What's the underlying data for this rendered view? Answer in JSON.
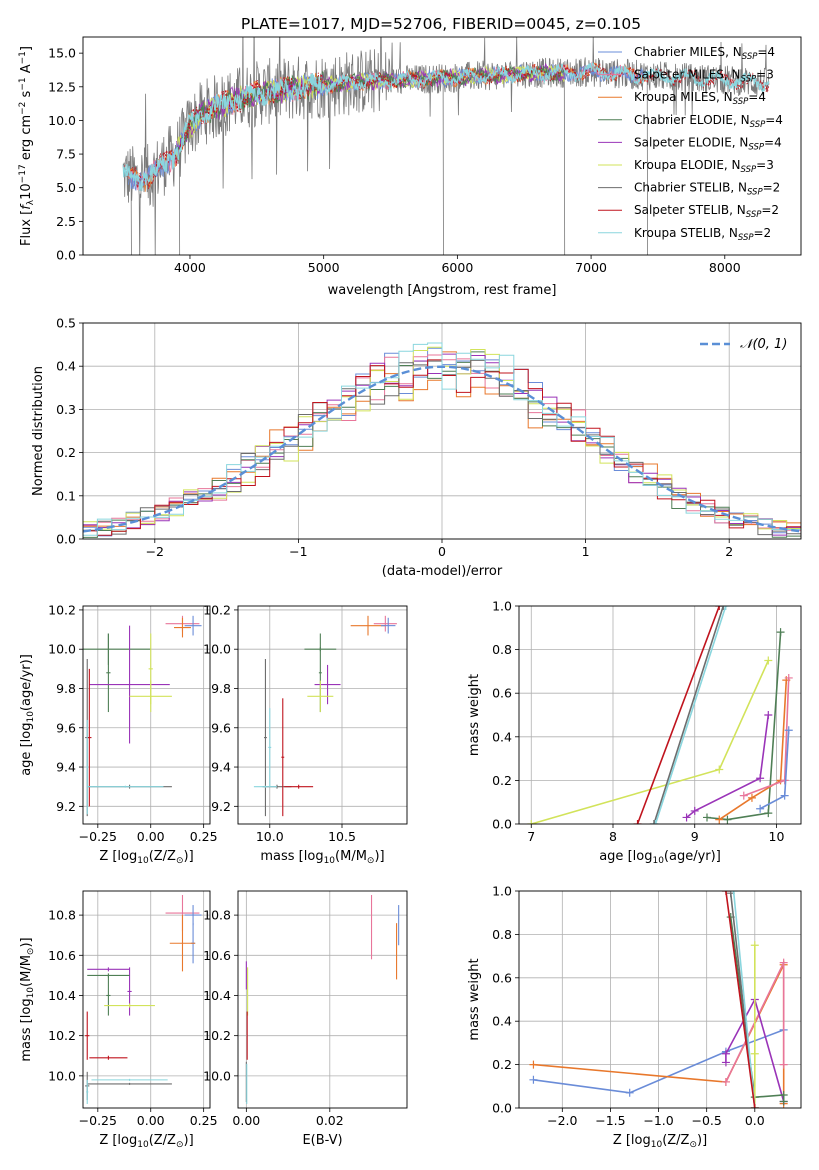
{
  "figure_title": "PLATE=1017, MJD=52706, FIBERID=0045, z=0.105",
  "colors": {
    "Chabrier MILES": "#6a8cd8",
    "Salpeter MILES": "#e8769a",
    "Kroupa MILES": "#e8782c",
    "Chabrier ELODIE": "#4f7f55",
    "Salpeter ELODIE": "#9a34b8",
    "Kroupa ELODIE": "#d2e35a",
    "Chabrier STELIB": "#6d6d6d",
    "Salpeter STELIB": "#c0141e",
    "Kroupa STELIB": "#8ad6de",
    "gaussian": "#5a8fd6"
  },
  "chart_data": [
    {
      "id": "spectrum",
      "type": "line",
      "xlabel": "wavelength [Angstrom, rest frame]",
      "ylabel_parts": [
        "Flux [",
        "f",
        "λ",
        "10",
        "−17",
        " erg cm",
        "−2",
        " s",
        "−1",
        " A",
        "−1",
        "]"
      ],
      "xlim": [
        3200,
        8570
      ],
      "ylim": [
        0,
        16.2
      ],
      "xticks": [
        4000,
        5000,
        6000,
        7000,
        8000
      ],
      "yticks": [
        0.0,
        2.5,
        5.0,
        7.5,
        10.0,
        12.5,
        15.0
      ],
      "grid": false,
      "legend_position": "upper right",
      "legend": [
        {
          "base": "Chabrier MILES, N",
          "sub": "SSP",
          "tail": "=4"
        },
        {
          "base": "Salpeter MILES, N",
          "sub": "SSP",
          "tail": "=3"
        },
        {
          "base": "Kroupa MILES, N",
          "sub": "SSP",
          "tail": "=4"
        },
        {
          "base": "Chabrier ELODIE, N",
          "sub": "SSP",
          "tail": "=4"
        },
        {
          "base": "Salpeter ELODIE, N",
          "sub": "SSP",
          "tail": "=4"
        },
        {
          "base": "Kroupa ELODIE, N",
          "sub": "SSP",
          "tail": "=3"
        },
        {
          "base": "Chabrier STELIB, N",
          "sub": "SSP",
          "tail": "=2"
        },
        {
          "base": "Salpeter STELIB, N",
          "sub": "SSP",
          "tail": "=2"
        },
        {
          "base": "Kroupa STELIB, N",
          "sub": "SSP",
          "tail": "=2"
        }
      ],
      "continuum": {
        "x": [
          3500,
          3600,
          3700,
          3800,
          3900,
          4000,
          4100,
          4200,
          4300,
          4500,
          4700,
          5000,
          5300,
          5600,
          6000,
          6500,
          7000,
          7500,
          8000,
          8300
        ],
        "y": [
          6.0,
          5.6,
          5.8,
          6.8,
          7.6,
          9.6,
          10.6,
          11.0,
          11.4,
          12.0,
          12.3,
          12.6,
          12.9,
          13.0,
          13.2,
          13.5,
          13.6,
          13.3,
          13.0,
          12.8
        ]
      },
      "data_noise_amplitude": 2.5,
      "data_spikes_x": [
        3560,
        3920,
        5893,
        6800,
        7420
      ]
    },
    {
      "id": "residuals",
      "type": "histogram",
      "xlabel": "(data-model)/error",
      "ylabel": "Normed distribution",
      "xlim": [
        -2.5,
        2.5
      ],
      "ylim": [
        0,
        0.5
      ],
      "xticks": [
        -2,
        -1,
        0,
        1,
        2
      ],
      "yticks": [
        0.0,
        0.1,
        0.2,
        0.3,
        0.4,
        0.5
      ],
      "grid": true,
      "legend_position": "upper right",
      "legend_label": "𝒩(0, 1)",
      "bin_width": 0.1,
      "gaussian_sigma": 1.0
    },
    {
      "id": "age_vs_Z",
      "type": "errorbar",
      "xlabel_parts": [
        "Z [log",
        "10",
        "(Z/Z",
        "⊙",
        ")]"
      ],
      "ylabel_parts": [
        "age  [log",
        "10",
        "(age/yr)]"
      ],
      "xlim": [
        -0.32,
        0.28
      ],
      "ylim": [
        9.11,
        10.22
      ],
      "xticks": [
        -0.25,
        0.0,
        0.25
      ],
      "yticks": [
        9.2,
        9.4,
        9.6,
        9.8,
        10.0,
        10.2
      ],
      "grid": true,
      "points": [
        {
          "model": "Salpeter MILES",
          "x": 0.15,
          "y": 10.13,
          "xerr": 0.08,
          "yerr": 0.04
        },
        {
          "model": "Kroupa MILES",
          "x": 0.15,
          "y": 10.11,
          "xerr": 0.04,
          "yerr": 0.05
        },
        {
          "model": "Chabrier MILES",
          "x": 0.2,
          "y": 10.12,
          "xerr": 0.04,
          "yerr": 0.05
        },
        {
          "model": "Chabrier ELODIE",
          "x": -0.2,
          "y": 10.0,
          "xerr": 0.2,
          "yerr": 0.08
        },
        {
          "model": "Chabrier ELODIE",
          "x": -0.2,
          "y": 9.88,
          "xerr": 0.01,
          "yerr": 0.2
        },
        {
          "model": "Salpeter ELODIE",
          "x": -0.1,
          "y": 9.82,
          "xerr": 0.19,
          "yerr": 0.3
        },
        {
          "model": "Kroupa ELODIE",
          "x": 0.0,
          "y": 9.76,
          "xerr": 0.1,
          "yerr": 0.08
        },
        {
          "model": "Kroupa ELODIE",
          "x": 0.0,
          "y": 9.9,
          "xerr": 0.01,
          "yerr": 0.18
        },
        {
          "model": "Chabrier STELIB",
          "x": -0.1,
          "y": 9.3,
          "xerr": 0.2,
          "yerr": 0.01
        },
        {
          "model": "Chabrier STELIB",
          "x": -0.3,
          "y": 9.55,
          "xerr": 0.01,
          "yerr": 0.4
        },
        {
          "model": "Salpeter STELIB",
          "x": -0.29,
          "y": 9.55,
          "xerr": 0.01,
          "yerr": 0.35
        },
        {
          "model": "Kroupa STELIB",
          "x": -0.3,
          "y": 9.4,
          "xerr": 0.005,
          "yerr": 0.24
        },
        {
          "model": "Kroupa STELIB",
          "x": -0.12,
          "y": 9.3,
          "xerr": 0.18,
          "yerr": 0.005
        }
      ]
    },
    {
      "id": "age_vs_mass",
      "type": "errorbar",
      "xlabel_parts": [
        "mass [log",
        "10",
        "(M/M",
        "⊙",
        ")]"
      ],
      "ylabel_parts": [],
      "xlim": [
        9.78,
        10.95
      ],
      "ylim": [
        9.11,
        10.22
      ],
      "xticks": [
        10.0,
        10.5
      ],
      "yticks": [
        9.2,
        9.4,
        9.6,
        9.8,
        10.0,
        10.2
      ],
      "grid": true,
      "points": [
        {
          "model": "Salpeter MILES",
          "x": 10.8,
          "y": 10.13,
          "xerr": 0.08,
          "yerr": 0.04
        },
        {
          "model": "Kroupa MILES",
          "x": 10.68,
          "y": 10.12,
          "xerr": 0.12,
          "yerr": 0.05
        },
        {
          "model": "Chabrier MILES",
          "x": 10.82,
          "y": 10.12,
          "xerr": 0.05,
          "yerr": 0.04
        },
        {
          "model": "Chabrier ELODIE",
          "x": 10.35,
          "y": 10.0,
          "xerr": 0.11,
          "yerr": 0.01
        },
        {
          "model": "Chabrier ELODIE",
          "x": 10.35,
          "y": 9.88,
          "xerr": 0.01,
          "yerr": 0.2
        },
        {
          "model": "Salpeter ELODIE",
          "x": 10.4,
          "y": 9.82,
          "xerr": 0.09,
          "yerr": 0.1
        },
        {
          "model": "Kroupa ELODIE",
          "x": 10.35,
          "y": 9.76,
          "xerr": 0.09,
          "yerr": 0.08
        },
        {
          "model": "Chabrier STELIB",
          "x": 9.97,
          "y": 9.55,
          "xerr": 0.01,
          "yerr": 0.4
        },
        {
          "model": "Chabrier STELIB",
          "x": 10.05,
          "y": 9.3,
          "xerr": 0.1,
          "yerr": 0.01
        },
        {
          "model": "Salpeter STELIB",
          "x": 10.09,
          "y": 9.45,
          "xerr": 0.01,
          "yerr": 0.3
        },
        {
          "model": "Salpeter STELIB",
          "x": 10.2,
          "y": 9.3,
          "xerr": 0.1,
          "yerr": 0.01
        },
        {
          "model": "Kroupa STELIB",
          "x": 9.97,
          "y": 9.3,
          "xerr": 0.08,
          "yerr": 0.005
        },
        {
          "model": "Kroupa STELIB",
          "x": 10.0,
          "y": 9.5,
          "xerr": 0.01,
          "yerr": 0.2
        }
      ]
    },
    {
      "id": "weight_vs_age",
      "type": "line",
      "xlabel_parts": [
        "age  [log",
        "10",
        "(age/yr)]"
      ],
      "ylabel": "mass weight",
      "xlim": [
        6.85,
        10.3
      ],
      "ylim": [
        0,
        1.0
      ],
      "xticks": [
        7,
        8,
        9,
        10
      ],
      "yticks": [
        0.0,
        0.2,
        0.4,
        0.6,
        0.8,
        1.0
      ],
      "grid": true,
      "series": [
        {
          "model": "Kroupa ELODIE",
          "x": [
            7.0,
            9.3,
            9.9
          ],
          "y": [
            0.0,
            0.25,
            0.75
          ]
        },
        {
          "model": "Salpeter STELIB",
          "x": [
            8.3,
            9.3
          ],
          "y": [
            0.0,
            1.0
          ]
        },
        {
          "model": "Chabrier STELIB",
          "x": [
            8.5,
            9.35
          ],
          "y": [
            0.0,
            1.0
          ]
        },
        {
          "model": "Kroupa STELIB",
          "x": [
            8.52,
            9.38
          ],
          "y": [
            0.0,
            1.0
          ]
        },
        {
          "model": "Salpeter ELODIE",
          "x": [
            8.9,
            9.0,
            9.8,
            9.9
          ],
          "y": [
            0.03,
            0.06,
            0.21,
            0.5
          ]
        },
        {
          "model": "Chabrier ELODIE",
          "x": [
            9.15,
            9.4,
            9.9,
            10.05
          ],
          "y": [
            0.03,
            0.02,
            0.05,
            0.88
          ]
        },
        {
          "model": "Kroupa MILES",
          "x": [
            9.3,
            9.7,
            10.05,
            10.12
          ],
          "y": [
            0.02,
            0.12,
            0.2,
            0.66
          ]
        },
        {
          "model": "Salpeter MILES",
          "x": [
            9.6,
            10.1,
            10.15
          ],
          "y": [
            0.13,
            0.2,
            0.67
          ]
        },
        {
          "model": "Chabrier MILES",
          "x": [
            9.8,
            10.1,
            10.15
          ],
          "y": [
            0.07,
            0.13,
            0.43
          ]
        }
      ]
    },
    {
      "id": "mass_vs_Z",
      "type": "errorbar",
      "xlabel_parts": [
        "Z [log",
        "10",
        "(Z/Z",
        "⊙",
        ")]"
      ],
      "ylabel_parts": [
        "mass [log",
        "10",
        "(M/M",
        "⊙",
        ")]"
      ],
      "xlim": [
        -0.32,
        0.28
      ],
      "ylim": [
        9.84,
        10.92
      ],
      "xticks": [
        -0.25,
        0.0,
        0.25
      ],
      "yticks": [
        10.0,
        10.2,
        10.4,
        10.6,
        10.8
      ],
      "grid": true,
      "points": [
        {
          "model": "Salpeter MILES",
          "x": 0.15,
          "y": 10.81,
          "xerr": 0.08,
          "yerr": 0.09
        },
        {
          "model": "Chabrier MILES",
          "x": 0.2,
          "y": 10.8,
          "xerr": 0.04,
          "yerr": 0.05
        },
        {
          "model": "Chabrier MILES",
          "x": 0.2,
          "y": 10.66,
          "xerr": 0.01,
          "yerr": 0.1
        },
        {
          "model": "Kroupa MILES",
          "x": 0.15,
          "y": 10.66,
          "xerr": 0.06,
          "yerr": 0.14
        },
        {
          "model": "Salpeter ELODIE",
          "x": -0.2,
          "y": 10.53,
          "xerr": 0.1,
          "yerr": 0.01
        },
        {
          "model": "Salpeter ELODIE",
          "x": -0.1,
          "y": 10.42,
          "xerr": 0.01,
          "yerr": 0.12
        },
        {
          "model": "Chabrier ELODIE",
          "x": -0.2,
          "y": 10.5,
          "xerr": 0.1,
          "yerr": 0.01
        },
        {
          "model": "Chabrier ELODIE",
          "x": -0.2,
          "y": 10.4,
          "xerr": 0.01,
          "yerr": 0.1
        },
        {
          "model": "Kroupa ELODIE",
          "x": -0.1,
          "y": 10.35,
          "xerr": 0.12,
          "yerr": 0.01
        },
        {
          "model": "Salpeter STELIB",
          "x": -0.3,
          "y": 10.2,
          "xerr": 0.01,
          "yerr": 0.12
        },
        {
          "model": "Salpeter STELIB",
          "x": -0.2,
          "y": 10.09,
          "xerr": 0.09,
          "yerr": 0.01
        },
        {
          "model": "Kroupa STELIB",
          "x": -0.1,
          "y": 9.98,
          "xerr": 0.18,
          "yerr": 0.005
        },
        {
          "model": "Chabrier STELIB",
          "x": -0.1,
          "y": 9.96,
          "xerr": 0.2,
          "yerr": 0.005
        },
        {
          "model": "Chabrier STELIB",
          "x": -0.3,
          "y": 9.95,
          "xerr": 0.01,
          "yerr": 0.07
        },
        {
          "model": "Kroupa STELIB",
          "x": -0.3,
          "y": 9.92,
          "xerr": 0.005,
          "yerr": 0.06
        }
      ]
    },
    {
      "id": "mass_vs_EBV",
      "type": "errorbar",
      "xlabel": "E(B-V)",
      "ylabel_parts": [],
      "xlim": [
        -0.002,
        0.0385
      ],
      "ylim": [
        9.84,
        10.92
      ],
      "xticks": [
        0.0,
        0.02
      ],
      "xtick_labels": [
        "0.00",
        "0.02"
      ],
      "yticks": [
        10.0,
        10.2,
        10.4,
        10.6,
        10.8
      ],
      "grid": true,
      "points": [
        {
          "model": "Salpeter MILES",
          "x": 0.03,
          "y": 10.74,
          "xerr": 0.0,
          "yerr": 0.16
        },
        {
          "model": "Chabrier MILES",
          "x": 0.0365,
          "y": 10.75,
          "xerr": 0.0,
          "yerr": 0.1
        },
        {
          "model": "Kroupa MILES",
          "x": 0.036,
          "y": 10.62,
          "xerr": 0.0,
          "yerr": 0.14
        },
        {
          "model": "Salpeter ELODIE",
          "x": 0.0,
          "y": 10.5,
          "xerr": 0.0,
          "yerr": 0.07
        },
        {
          "model": "Kroupa ELODIE",
          "x": 0.0003,
          "y": 10.42,
          "xerr": 0.0,
          "yerr": 0.12
        },
        {
          "model": "Salpeter STELIB",
          "x": 0.0002,
          "y": 10.2,
          "xerr": 0.0,
          "yerr": 0.12
        },
        {
          "model": "Chabrier STELIB",
          "x": 0.0,
          "y": 9.97,
          "xerr": 0.0,
          "yerr": 0.1
        },
        {
          "model": "Kroupa STELIB",
          "x": 0.0001,
          "y": 9.96,
          "xerr": 0.0,
          "yerr": 0.1
        }
      ]
    },
    {
      "id": "weight_vs_Z",
      "type": "line",
      "xlabel_parts": [
        "Z [log",
        "10",
        "(Z/Z",
        "⊙",
        ")]"
      ],
      "ylabel": "mass weight",
      "xlim": [
        -2.45,
        0.48
      ],
      "ylim": [
        0,
        1.0
      ],
      "xticks": [
        -2.0,
        -1.5,
        -1.0,
        -0.5,
        0.0
      ],
      "yticks": [
        0.0,
        0.2,
        0.4,
        0.6,
        0.8,
        1.0
      ],
      "grid": true,
      "series": [
        {
          "model": "Chabrier MILES",
          "x": [
            -2.3,
            -1.3,
            -0.3,
            0.3
          ],
          "y": [
            0.13,
            0.07,
            0.26,
            0.36
          ]
        },
        {
          "model": "Kroupa MILES",
          "x": [
            -2.3,
            -0.3,
            0.3,
            0.3
          ],
          "y": [
            0.2,
            0.12,
            0.66,
            0.02
          ]
        },
        {
          "model": "Salpeter MILES",
          "x": [
            -0.3,
            0.3,
            0.3
          ],
          "y": [
            0.12,
            0.67,
            0.2
          ]
        },
        {
          "model": "Salpeter ELODIE",
          "x": [
            -0.3,
            -0.3,
            0.0,
            0.3
          ],
          "y": [
            0.21,
            0.25,
            0.5,
            0.03
          ]
        },
        {
          "model": "Chabrier ELODIE",
          "x": [
            -0.25,
            0.0,
            0.3,
            0.3
          ],
          "y": [
            0.88,
            0.05,
            0.06,
            0.03
          ]
        },
        {
          "model": "Kroupa ELODIE",
          "x": [
            0.0,
            0.0,
            0.0
          ],
          "y": [
            0.75,
            0.25,
            0.0
          ]
        },
        {
          "model": "Chabrier STELIB",
          "x": [
            -0.25,
            0.0
          ],
          "y": [
            0.99,
            0.0
          ]
        },
        {
          "model": "Kroupa STELIB",
          "x": [
            -0.22,
            0.0
          ],
          "y": [
            1.0,
            0.0
          ]
        },
        {
          "model": "Salpeter STELIB",
          "x": [
            -0.3,
            0.0
          ],
          "y": [
            1.0,
            0.0
          ]
        }
      ]
    }
  ]
}
